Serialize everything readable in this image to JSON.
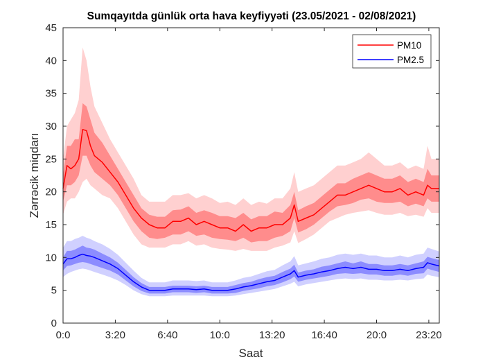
{
  "chart_data": {
    "type": "line",
    "title": "Sumqayıtda günlük orta hava keyfiyyəti (23.05/2021 - 02/08/2021)",
    "xlabel": "Saat",
    "ylabel": "Zərrəcik miqdarı",
    "xlim": [
      0,
      24
    ],
    "ylim": [
      0,
      45
    ],
    "xticks": [
      0,
      3.333,
      6.667,
      10,
      13.333,
      16.667,
      20,
      23.333
    ],
    "xtick_labels": [
      "0:0",
      "3:20",
      "6:40",
      "10:0",
      "13:20",
      "16:40",
      "20:0",
      "23:20"
    ],
    "yticks": [
      0,
      5,
      10,
      15,
      20,
      25,
      30,
      35,
      40,
      45
    ],
    "ytick_labels": [
      "0",
      "5",
      "10",
      "15",
      "20",
      "25",
      "30",
      "35",
      "40",
      "45"
    ],
    "grid": false,
    "legend_position": "top-right",
    "x": [
      0,
      0.25,
      0.5,
      0.75,
      1,
      1.25,
      1.5,
      1.75,
      2,
      2.5,
      3,
      3.5,
      4,
      4.5,
      5,
      5.5,
      6,
      6.5,
      7,
      7.5,
      8,
      8.5,
      9,
      9.5,
      10,
      10.5,
      11,
      11.5,
      12,
      12.5,
      13,
      13.5,
      14,
      14.5,
      14.75,
      15,
      15.5,
      16,
      16.5,
      17,
      17.5,
      18,
      18.5,
      19,
      19.5,
      20,
      20.5,
      21,
      21.5,
      22,
      22.5,
      23,
      23.25,
      23.5,
      24
    ],
    "series": [
      {
        "name": "PM10",
        "color": "#ff0000",
        "band_inner_color": "#ff8c8c",
        "band_outer_color": "#ffd0d0",
        "values": [
          20.5,
          24,
          23.5,
          24,
          25,
          29.5,
          29.3,
          27,
          25.5,
          24.5,
          23,
          21.5,
          19.5,
          17.5,
          16,
          15,
          14.5,
          14.5,
          15.5,
          15.5,
          16,
          15,
          15.5,
          15,
          14.5,
          14.5,
          14,
          15,
          14,
          14.5,
          14.5,
          15,
          15,
          16,
          18,
          15.5,
          16,
          16.5,
          17.5,
          18.5,
          19.5,
          19.5,
          20,
          20.5,
          21,
          20.5,
          20,
          20,
          20.5,
          19.5,
          20,
          19.5,
          21,
          20.5,
          20.5
        ],
        "inner_low": [
          18.5,
          21,
          21,
          21.5,
          22.5,
          25.5,
          25.5,
          24,
          23,
          22,
          21,
          19.5,
          17.5,
          15.5,
          14,
          13,
          12.8,
          13,
          13.5,
          13.5,
          14,
          13.3,
          13.5,
          13,
          12.8,
          12.7,
          12.5,
          13,
          12.3,
          12.5,
          12.5,
          13,
          13.3,
          14,
          16,
          13.8,
          14.3,
          15,
          16,
          17,
          17.8,
          18,
          18.3,
          18.8,
          19,
          18.5,
          18.3,
          18.3,
          18.5,
          17.8,
          18.2,
          17.8,
          19,
          18.5,
          18.5
        ],
        "inner_high": [
          22.5,
          27,
          27,
          28,
          28,
          33.5,
          33,
          31,
          29,
          27.5,
          25.5,
          23.5,
          21.5,
          19.5,
          17.5,
          16.5,
          16.2,
          16.2,
          17.2,
          17.3,
          17.8,
          16.8,
          17.2,
          16.8,
          16.3,
          16.3,
          16,
          16.8,
          15.8,
          16.3,
          16.3,
          17,
          16.8,
          18,
          20,
          17.2,
          17.8,
          18.3,
          19.3,
          20.3,
          21.3,
          21.3,
          22,
          22.5,
          23,
          22.5,
          22,
          22,
          22.5,
          21.5,
          22,
          21.5,
          23.5,
          22.5,
          22.5
        ],
        "outer_low": [
          16.5,
          18.5,
          19,
          19,
          20,
          21.5,
          22,
          21,
          20.5,
          19.5,
          19,
          17.5,
          15.5,
          13.5,
          12,
          11.5,
          11.5,
          11.5,
          12,
          12,
          12.5,
          11.8,
          12,
          11.5,
          11.3,
          11.2,
          11,
          11.3,
          11,
          11,
          11,
          11.5,
          11.8,
          12.3,
          14,
          12.2,
          12.8,
          13.5,
          14.5,
          15.5,
          16,
          16.5,
          16.8,
          17,
          17.2,
          16.8,
          16.5,
          16.5,
          16.8,
          16.3,
          16.5,
          16.2,
          17.5,
          16.8,
          16.8
        ],
        "outer_high": [
          25,
          30,
          31,
          32,
          34,
          42,
          40,
          36,
          33,
          30.5,
          28,
          26,
          24,
          22,
          19.5,
          18.5,
          18.5,
          18.5,
          19.5,
          19.5,
          19.8,
          19,
          19.5,
          19,
          18.3,
          18.5,
          18,
          19,
          18,
          18.5,
          18.2,
          19,
          19,
          20.5,
          23,
          20,
          20.5,
          21,
          22,
          23,
          24,
          24,
          24.5,
          25,
          26,
          25,
          24,
          24,
          24.5,
          23.5,
          24,
          23.5,
          27,
          25,
          25
        ]
      },
      {
        "name": "PM2.5",
        "color": "#0000ff",
        "band_inner_color": "#8c8cff",
        "band_outer_color": "#d0d0ff",
        "values": [
          9,
          9.8,
          9.8,
          10,
          10.3,
          10.5,
          10.3,
          10.2,
          10,
          9.5,
          9,
          8.3,
          7.3,
          6.3,
          5.5,
          5,
          5,
          5,
          5.2,
          5.2,
          5.2,
          5.1,
          5.2,
          5,
          5,
          5,
          5.2,
          5.5,
          5.7,
          6,
          6.3,
          6.5,
          7,
          7.5,
          8,
          7,
          7.3,
          7.5,
          7.8,
          8,
          8.3,
          8.5,
          8.3,
          8.5,
          8.2,
          8.2,
          8,
          8,
          8.2,
          8,
          8.3,
          8.5,
          9.2,
          9,
          8.7
        ],
        "inner_low": [
          8,
          8.7,
          8.8,
          9,
          9.2,
          9.3,
          9.2,
          9,
          8.8,
          8.4,
          8,
          7.4,
          6.5,
          5.6,
          4.9,
          4.5,
          4.5,
          4.5,
          4.7,
          4.7,
          4.7,
          4.6,
          4.7,
          4.5,
          4.5,
          4.5,
          4.6,
          4.9,
          5.1,
          5.3,
          5.6,
          5.8,
          6.2,
          6.7,
          7.1,
          6.3,
          6.6,
          6.8,
          7,
          7.2,
          7.5,
          7.6,
          7.5,
          7.6,
          7.4,
          7.4,
          7.2,
          7.2,
          7.4,
          7.2,
          7.5,
          7.6,
          8.3,
          8.1,
          7.8
        ],
        "inner_high": [
          10,
          11,
          11,
          11.2,
          11.5,
          11.8,
          11.5,
          11.4,
          11.2,
          10.6,
          10,
          9.2,
          8.1,
          7,
          6.1,
          5.5,
          5.5,
          5.5,
          5.7,
          5.7,
          5.7,
          5.6,
          5.7,
          5.5,
          5.5,
          5.5,
          5.8,
          6.1,
          6.3,
          6.7,
          7,
          7.2,
          7.8,
          8.3,
          8.9,
          7.7,
          8,
          8.2,
          8.6,
          8.8,
          9.1,
          9.4,
          9.1,
          9.4,
          9,
          9,
          8.8,
          8.8,
          9,
          8.8,
          9.1,
          9.4,
          10.1,
          9.9,
          9.6
        ],
        "outer_low": [
          7,
          7.5,
          7.8,
          8,
          8.2,
          8.3,
          8.2,
          8,
          7.8,
          7.4,
          7,
          6.5,
          5.8,
          5,
          4.4,
          4.1,
          4.1,
          4.1,
          4.2,
          4.2,
          4.2,
          4.2,
          4.2,
          4.1,
          4.1,
          4.1,
          4.2,
          4.4,
          4.6,
          4.8,
          5,
          5.2,
          5.6,
          6,
          6.3,
          5.6,
          5.9,
          6.1,
          6.3,
          6.5,
          6.7,
          6.8,
          6.7,
          6.8,
          6.6,
          6.6,
          6.5,
          6.5,
          6.6,
          6.5,
          6.7,
          6.8,
          7.4,
          7.2,
          7
        ],
        "outer_high": [
          11.5,
          12.5,
          12.5,
          12.8,
          13,
          13.3,
          13,
          12.8,
          12.5,
          12,
          11.3,
          10.4,
          9.2,
          8,
          6.9,
          6.2,
          6.2,
          6.2,
          6.5,
          6.5,
          6.5,
          6.4,
          6.5,
          6.2,
          6.2,
          6.2,
          6.5,
          6.9,
          7.1,
          7.5,
          7.9,
          8.1,
          8.8,
          9.4,
          10.2,
          8.8,
          9.1,
          9.4,
          9.8,
          10,
          10.4,
          10.6,
          10.4,
          10.6,
          10.3,
          10.3,
          10,
          10,
          10.3,
          10,
          10.4,
          10.6,
          11.5,
          11.3,
          10.9
        ]
      }
    ]
  }
}
